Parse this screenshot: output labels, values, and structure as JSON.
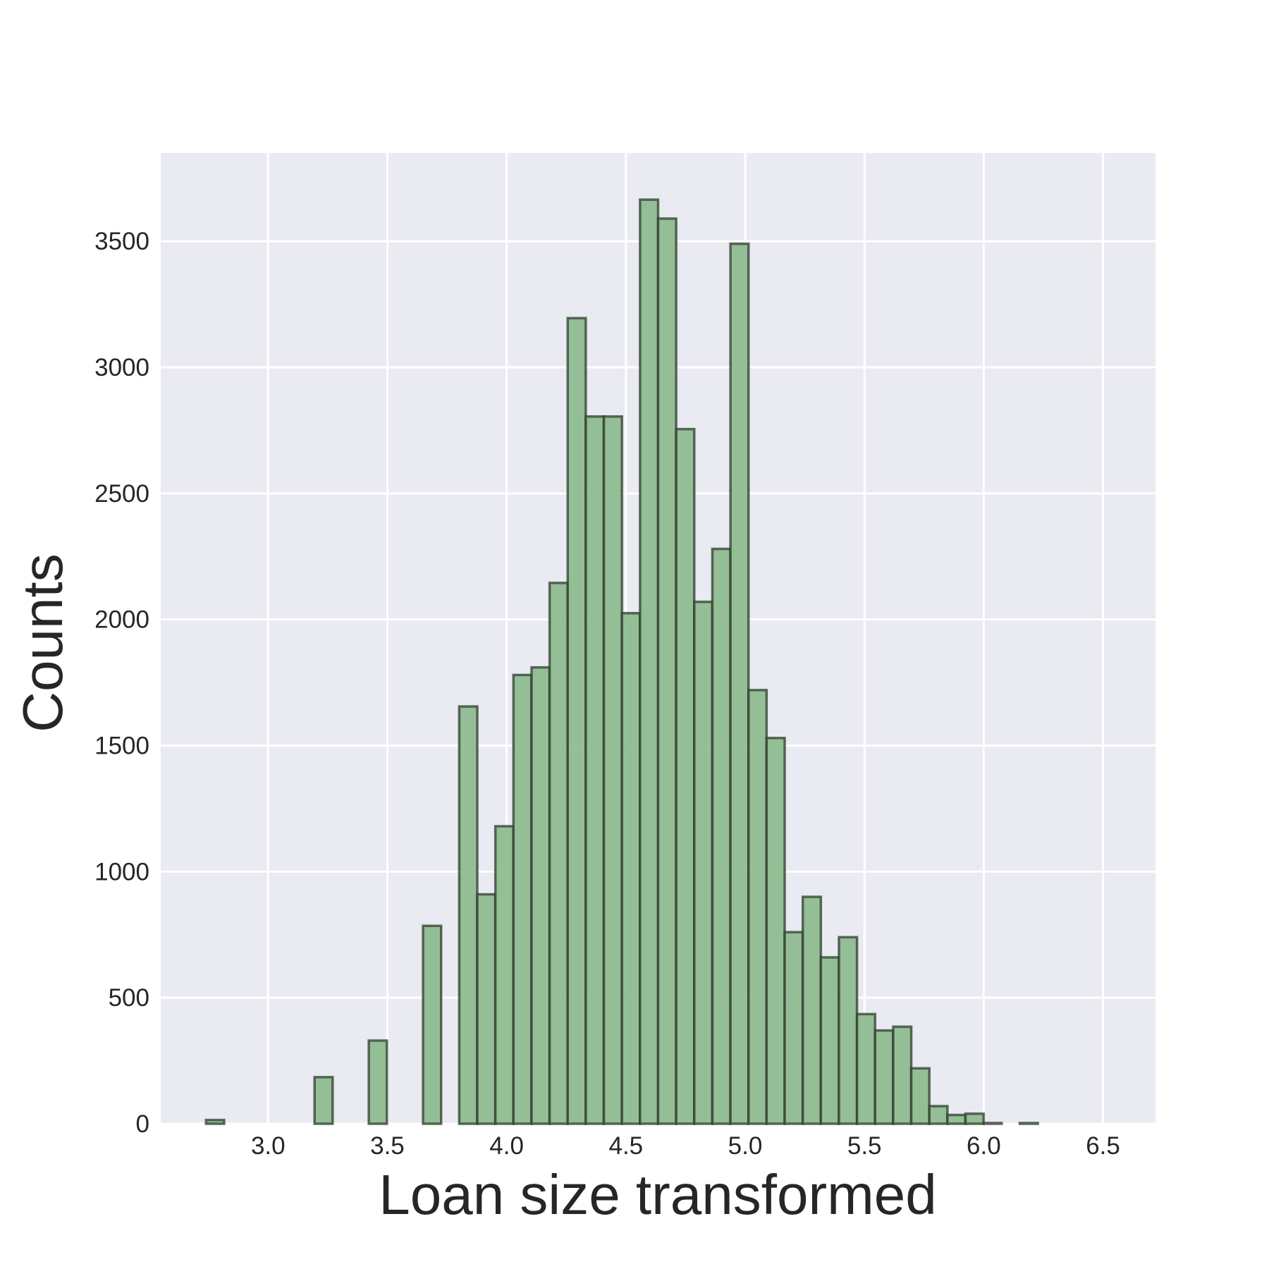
{
  "chart_data": {
    "type": "bar",
    "title": "",
    "xlabel": "Loan size transformed",
    "ylabel": "Counts",
    "xlim": [
      2.55,
      6.72
    ],
    "ylim": [
      0,
      3850
    ],
    "grid": true,
    "background": "#eaeaf2",
    "bar_color": "#8fbc8f",
    "edge_color": "#2f3e2f",
    "x_ticks": [
      3.0,
      3.5,
      4.0,
      4.5,
      5.0,
      5.5,
      6.0,
      6.5
    ],
    "x_tick_labels": [
      "3.0",
      "3.5",
      "4.0",
      "4.5",
      "5.0",
      "5.5",
      "6.0",
      "6.5"
    ],
    "y_ticks": [
      0,
      500,
      1000,
      1500,
      2000,
      2500,
      3000,
      3500
    ],
    "y_tick_labels": [
      "0",
      "500",
      "1000",
      "1500",
      "2000",
      "2500",
      "3000",
      "3500"
    ],
    "bin_start": 2.74,
    "bin_width": 0.0758,
    "counts": [
      15,
      0,
      0,
      0,
      0,
      0,
      185,
      0,
      0,
      330,
      0,
      0,
      785,
      0,
      1655,
      910,
      1180,
      1780,
      1810,
      2145,
      3195,
      2805,
      2805,
      2025,
      3665,
      3590,
      2755,
      2070,
      2280,
      3490,
      1720,
      1530,
      760,
      900,
      660,
      740,
      435,
      370,
      385,
      220,
      70,
      35,
      40,
      3,
      0,
      3,
      0,
      0,
      0,
      0
    ]
  }
}
